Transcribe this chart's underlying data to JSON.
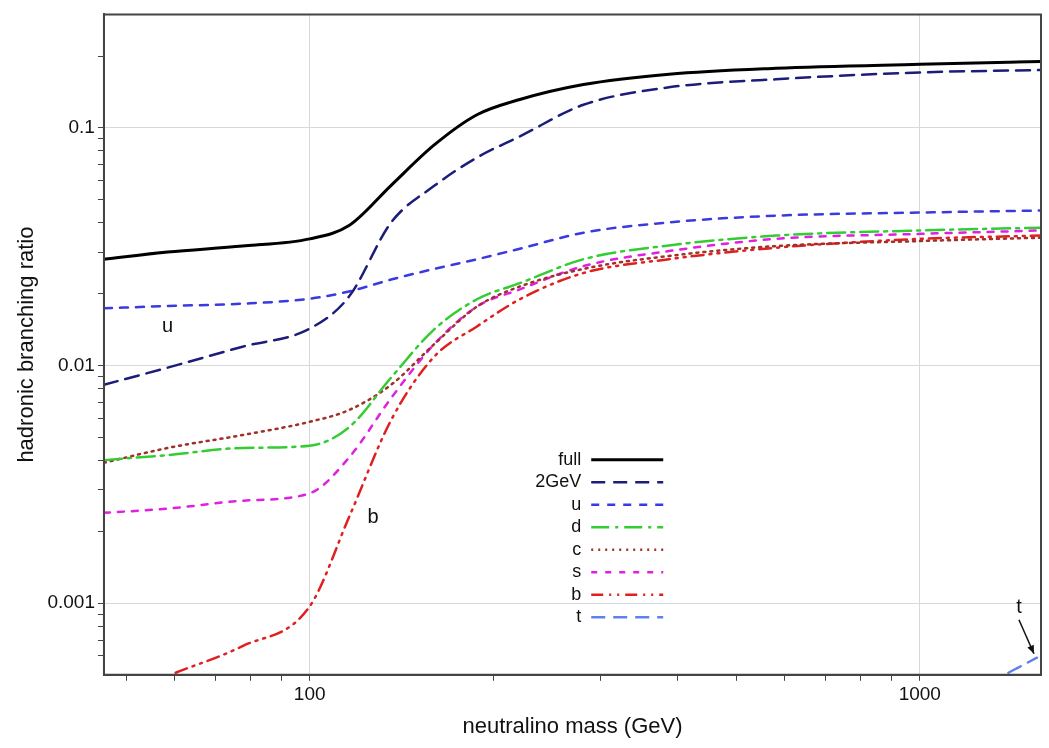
{
  "chart_data": {
    "type": "line",
    "xlabel": "neutralino mass (GeV)",
    "ylabel": "hadronic branching ratio",
    "log": "xy",
    "grid": true,
    "legend": "bottom",
    "marker": "none",
    "xlim": [
      46,
      1580
    ],
    "ylim": [
      0.0005,
      0.3
    ],
    "xticks": [
      {
        "value": 50,
        "label": null
      },
      {
        "value": 60,
        "label": null
      },
      {
        "value": 70,
        "label": null
      },
      {
        "value": 80,
        "label": null
      },
      {
        "value": 90,
        "label": null
      },
      100,
      {
        "value": 200,
        "label": null
      },
      {
        "value": 300,
        "label": null
      },
      {
        "value": 400,
        "label": null
      },
      {
        "value": 500,
        "label": null
      },
      {
        "value": 600,
        "label": null
      },
      {
        "value": 700,
        "label": null
      },
      {
        "value": 800,
        "label": null
      },
      {
        "value": 900,
        "label": null
      },
      1000
    ],
    "yticks": [
      {
        "value": 0.0006,
        "label": null
      },
      {
        "value": 0.0007,
        "label": null
      },
      {
        "value": 0.0008,
        "label": null
      },
      {
        "value": 0.0009,
        "label": null
      },
      0.001,
      {
        "value": 0.002,
        "label": null
      },
      {
        "value": 0.003,
        "label": null
      },
      {
        "value": 0.004,
        "label": null
      },
      {
        "value": 0.005,
        "label": null
      },
      {
        "value": 0.006,
        "label": null
      },
      {
        "value": 0.007,
        "label": null
      },
      {
        "value": 0.008,
        "label": null
      },
      {
        "value": 0.009,
        "label": null
      },
      0.01,
      {
        "value": 0.02,
        "label": null
      },
      {
        "value": 0.03,
        "label": null
      },
      {
        "value": 0.04,
        "label": null
      },
      {
        "value": 0.05,
        "label": null
      },
      {
        "value": 0.06,
        "label": null
      },
      {
        "value": 0.07,
        "label": null
      },
      {
        "value": 0.08,
        "label": null
      },
      {
        "value": 0.09,
        "label": null
      },
      0.1,
      {
        "value": 0.2,
        "label": null
      }
    ],
    "x": [
      46,
      58.5,
      77.6,
      100,
      116,
      136,
      160,
      188,
      221,
      281,
      388,
      581,
      1000,
      1580
    ],
    "series": [
      {
        "name": "full",
        "color": "#000000",
        "line_style": "solid",
        "values": [
          0.028,
          0.03,
          0.0318,
          0.0341,
          0.0388,
          0.0573,
          0.0847,
          0.1135,
          0.1315,
          0.152,
          0.168,
          0.178,
          0.185,
          0.19
        ]
      },
      {
        "name": "2GeV",
        "color": "#1c1c7a",
        "line_style": "dashed",
        "values": [
          0.0083,
          0.0098,
          0.012,
          0.0143,
          0.0195,
          0.04,
          0.057,
          0.075,
          0.092,
          0.125,
          0.148,
          0.16,
          0.171,
          0.175
        ]
      },
      {
        "name": "u",
        "color": "#3a3ae0",
        "line_style": "dashed",
        "values": [
          0.0174,
          0.0178,
          0.0182,
          0.0191,
          0.0205,
          0.023,
          0.0255,
          0.028,
          0.031,
          0.0362,
          0.04,
          0.0427,
          0.044,
          0.0449
        ]
      },
      {
        "name": "d",
        "color": "#33cc33",
        "line_style": "dashed",
        "values": [
          0.004,
          0.0042,
          0.0045,
          0.0046,
          0.0055,
          0.0089,
          0.0142,
          0.019,
          0.0222,
          0.028,
          0.032,
          0.0352,
          0.037,
          0.038
        ]
      },
      {
        "name": "c",
        "color": "#a0302a",
        "line_style": "dotted",
        "values": [
          0.0039,
          0.0045,
          0.0051,
          0.0058,
          0.0065,
          0.0083,
          0.0123,
          0.0177,
          0.0215,
          0.0255,
          0.0289,
          0.0318,
          0.0334,
          0.0345
        ]
      },
      {
        "name": "s",
        "color": "#e020e0",
        "line_style": "dashed",
        "values": [
          0.0024,
          0.0025,
          0.0027,
          0.0029,
          0.0041,
          0.0073,
          0.0123,
          0.0177,
          0.0209,
          0.0262,
          0.0303,
          0.0341,
          0.0358,
          0.037
        ]
      },
      {
        "name": "b",
        "color": "#e02020",
        "line_style": "dashed",
        "x": [
          60.3,
          77.6,
          100,
          116,
          136,
          160,
          188,
          221,
          281,
          388,
          581,
          1000,
          1580
        ],
        "values": [
          0.00051,
          0.00066,
          0.00097,
          0.0023,
          0.0059,
          0.0109,
          0.0146,
          0.019,
          0.0245,
          0.028,
          0.0313,
          0.0341,
          0.0352
        ]
      },
      {
        "name": "t",
        "color": "#6080f0",
        "line_style": "dashed",
        "x": [
          1397,
          1556
        ],
        "values": [
          0.00051,
          0.00059
        ]
      }
    ],
    "annotations": [
      {
        "text": "u",
        "x": 58.5,
        "y": 0.0178
      },
      {
        "text": "b",
        "x": 116,
        "y": 0.0023
      },
      {
        "text": "t",
        "x": 1556,
        "y": 0.00059
      }
    ]
  }
}
